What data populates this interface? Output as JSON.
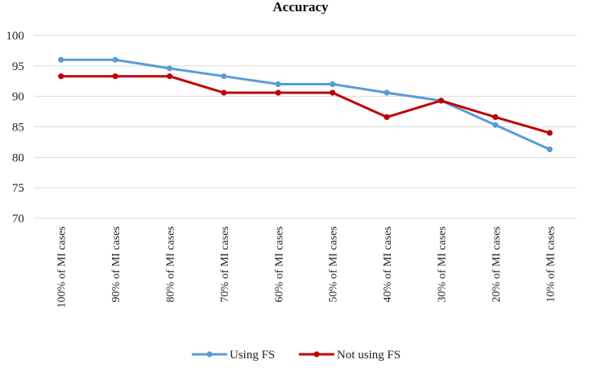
{
  "chart_data": {
    "type": "line",
    "title": "Accuracy",
    "xlabel": "",
    "ylabel": "",
    "ylim": [
      70,
      100
    ],
    "yticks": [
      70,
      75,
      80,
      85,
      90,
      95,
      100
    ],
    "grid": true,
    "legend_position": "bottom",
    "categories": [
      "100% of MI cases",
      "90% of MI cases",
      "80% of MI cases",
      "70% of MI cases",
      "60% of MI cases",
      "50% of MI cases",
      "40% of MI cases",
      "30% of MI cases",
      "20% of MI cases",
      "10% of MI cases"
    ],
    "series": [
      {
        "name": "Using FS",
        "color": "#5b9bd5",
        "values": [
          96.0,
          96.0,
          94.6,
          93.3,
          92.0,
          92.0,
          90.6,
          89.3,
          85.3,
          81.3
        ]
      },
      {
        "name": "Not using FS",
        "color": "#c00000",
        "values": [
          93.3,
          93.3,
          93.3,
          90.6,
          90.6,
          90.6,
          86.6,
          89.3,
          86.6,
          84.0
        ]
      }
    ]
  }
}
